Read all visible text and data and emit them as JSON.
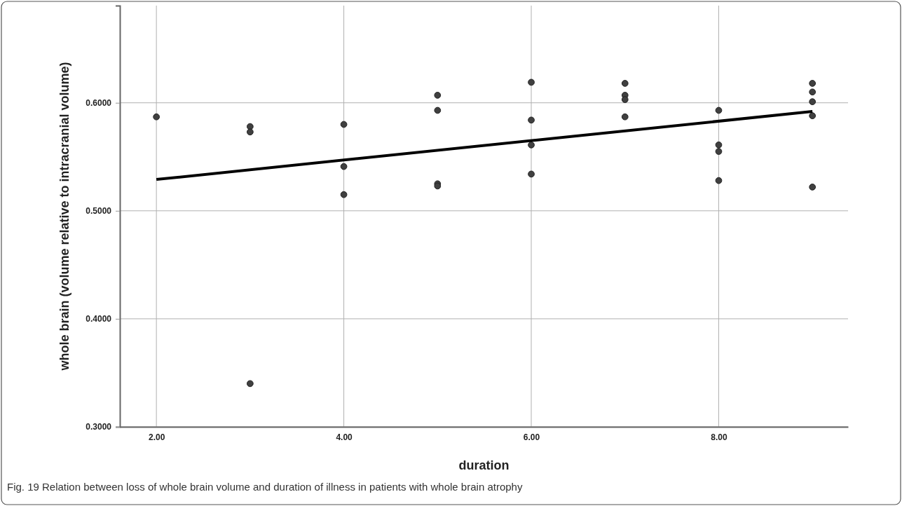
{
  "chart_data": {
    "type": "scatter",
    "xlabel": "duration",
    "ylabel": "whole brain (volume relative to intracranial volume)",
    "annotations": [
      "Fig. 19  Relation between loss of whole brain volume and duration of illness in patients with whole brain atrophy"
    ],
    "xlim": [
      1.61,
      9.38
    ],
    "xticks": [
      {
        "value": 2,
        "label": "2.00"
      },
      {
        "value": 4,
        "label": "4.00"
      },
      {
        "value": 6,
        "label": "6.00"
      },
      {
        "value": 8,
        "label": "8.00"
      }
    ],
    "ylim": [
      0.3,
      0.69
    ],
    "yticks": [
      {
        "value": 0.3,
        "label": "0.3000"
      },
      {
        "value": 0.4,
        "label": "0.4000"
      },
      {
        "value": 0.5,
        "label": "0.5000"
      },
      {
        "value": 0.6,
        "label": "0.6000"
      }
    ],
    "grid": true,
    "marker": "circle",
    "series": [
      {
        "color": "#404040",
        "x": [
          2,
          3,
          3,
          3,
          4,
          4,
          4,
          5,
          5,
          5,
          5,
          6,
          6,
          6,
          6,
          7,
          7,
          7,
          7,
          8,
          8,
          8,
          8,
          9,
          9,
          9,
          9,
          9
        ],
        "values": [
          0.587,
          0.578,
          0.573,
          0.34,
          0.58,
          0.541,
          0.515,
          0.607,
          0.593,
          0.525,
          0.523,
          0.619,
          0.584,
          0.561,
          0.534,
          0.618,
          0.607,
          0.603,
          0.587,
          0.593,
          0.561,
          0.555,
          0.528,
          0.618,
          0.61,
          0.601,
          0.588,
          0.522
        ]
      },
      {
        "type": "line",
        "color": "#000000",
        "marker": "none",
        "x": [
          2,
          9
        ],
        "values": [
          0.529,
          0.592
        ]
      }
    ]
  }
}
